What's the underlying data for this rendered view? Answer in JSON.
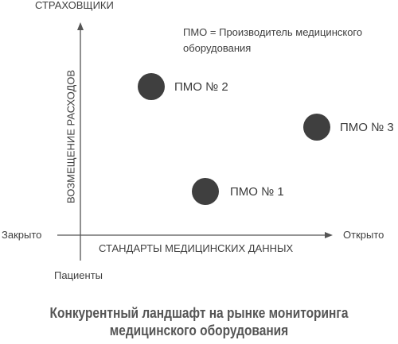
{
  "diagram": {
    "y_axis_top_label": "СТРАХОВЩИКИ",
    "y_axis_bottom_label": "Пациенты",
    "y_axis_title": "ВОЗМЕЩЕНИЕ РАСХОДОВ",
    "x_axis_left_label": "Закрыто",
    "x_axis_right_label": "Открыто",
    "x_axis_title": "СТАНДАРТЫ МЕДИЦИНСКИХ ДАННЫХ",
    "legend_note_line1": "ПМО = Производитель медицинского",
    "legend_note_line2": "оборудования",
    "points": [
      {
        "label": "ПМО № 2"
      },
      {
        "label": "ПМО № 3"
      },
      {
        "label": "ПМО № 1"
      }
    ],
    "point_color": "#3f3f3f"
  },
  "caption": {
    "line1": "Конкурентный ландшафт на рынке мониторинга",
    "line2": "медицинского оборудования"
  }
}
